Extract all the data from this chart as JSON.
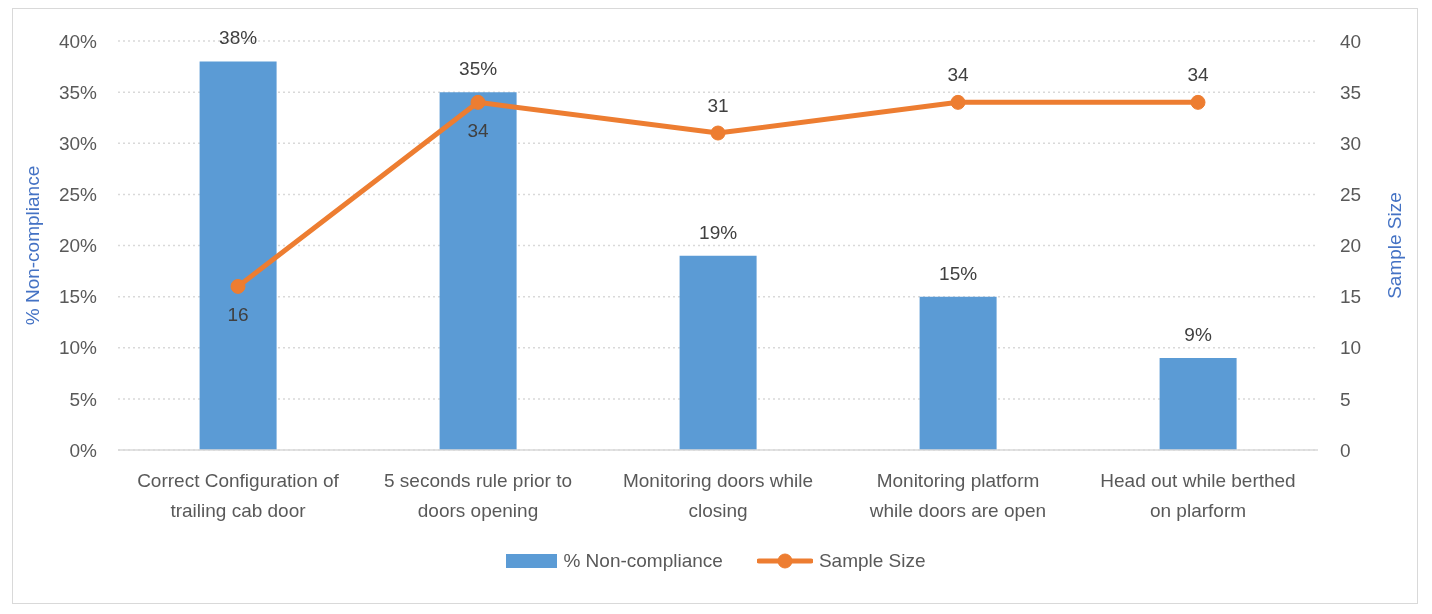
{
  "chart_data": {
    "type": "bar",
    "categories": [
      "Correct Configuration of trailing cab door",
      "5 seconds rule prior to doors opening",
      "Monitoring doors while closing",
      "Monitoring platform while doors are open",
      "Head out while berthed on plarform"
    ],
    "series": [
      {
        "name": "% Non-compliance",
        "color": "#5b9bd5",
        "values": [
          38,
          35,
          19,
          15,
          9
        ],
        "value_labels": [
          "38%",
          "35%",
          "19%",
          "15%",
          "9%"
        ]
      },
      {
        "name": "Sample Size",
        "type": "line",
        "axis": "y2",
        "color": "#ed7d31",
        "values": [
          16,
          34,
          31,
          34,
          34
        ],
        "value_labels": [
          "16",
          "34",
          "31",
          "34",
          "34"
        ]
      }
    ],
    "ylabel": "% Non-compliance",
    "y2label": "Sample Size",
    "ylim": [
      0,
      40
    ],
    "yticks": [
      {
        "value": 0,
        "label": "0%"
      },
      {
        "value": 5,
        "label": "5%"
      },
      {
        "value": 10,
        "label": "10%"
      },
      {
        "value": 15,
        "label": "15%"
      },
      {
        "value": 20,
        "label": "20%"
      },
      {
        "value": 25,
        "label": "25%"
      },
      {
        "value": 30,
        "label": "30%"
      },
      {
        "value": 35,
        "label": "35%"
      },
      {
        "value": 40,
        "label": "40%"
      }
    ],
    "y2lim": [
      0,
      40
    ],
    "y2ticks": [
      0,
      5,
      10,
      15,
      20,
      25,
      30,
      35,
      40
    ],
    "grid": "y",
    "legend": "bottom",
    "marker": "circle"
  }
}
